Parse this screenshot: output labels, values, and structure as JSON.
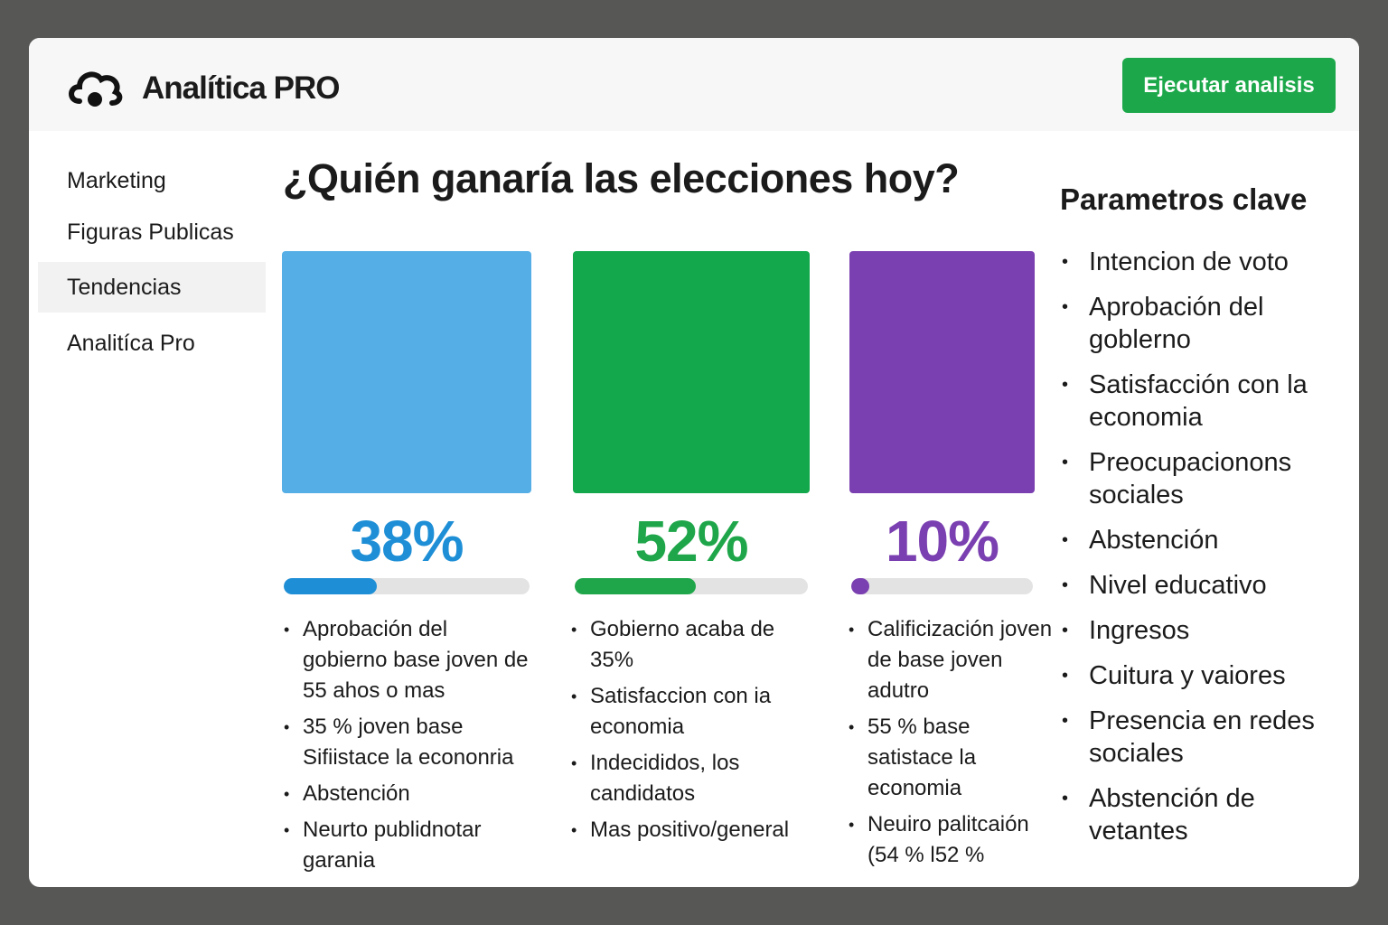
{
  "header": {
    "title": "Analítica PRO",
    "button": "Ejecutar analisis"
  },
  "sidebar": {
    "items": [
      "Marketing",
      "Figuras Publicas",
      "Tendencias",
      "Analitíca Pro"
    ],
    "active": 2
  },
  "main": {
    "title": "¿Quién ganaría las elecciones hoy?",
    "cards": [
      {
        "value": 38,
        "value_label": "38%",
        "color": "#55aee6",
        "accent": "#1e8fd6",
        "bullets": [
          "Aprobación del gobierno base joven de 55 ahos o mas",
          "35 % joven base Sifiistace la econonria",
          "Abstención",
          "Neurto publidnotar garania"
        ]
      },
      {
        "value": 52,
        "value_label": "52%",
        "color": "#12a84b",
        "accent": "#1fa64a",
        "bullets": [
          "Gobierno acaba de 35%",
          "Satisfaccion con ia economia",
          "Indecididos, los candidatos",
          "Mas positivo/general"
        ]
      },
      {
        "value": 10,
        "value_label": "10%",
        "color": "#7a3fb0",
        "accent": "#7a3fb0",
        "bullets": [
          "Calificización joven de base joven adutro",
          "55 % base satistace la economia",
          "Neuiro palitcaión (54 % l52 %"
        ]
      }
    ]
  },
  "parameters": {
    "title": "Parametros clave",
    "items": [
      "Intencion de voto",
      "Aprobación del goblerno",
      "Satisfacción con la economia",
      "Preocupacionons sociales",
      "Abstención",
      "Nivel educativo",
      "Ingresos",
      "Cuitura y vaiores",
      "Presencia en redes sociales",
      "Abstención de vetantes"
    ]
  }
}
